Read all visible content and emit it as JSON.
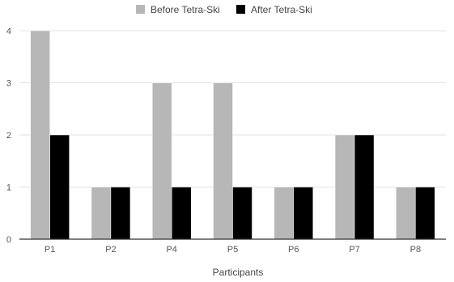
{
  "chart_data": {
    "type": "bar",
    "title": "",
    "xlabel": "Participants",
    "ylabel": "",
    "categories": [
      "P1",
      "P2",
      "P4",
      "P5",
      "P6",
      "P7",
      "P8"
    ],
    "series": [
      {
        "name": "Before Tetra-Ski",
        "color": "#b7b7b7",
        "values": [
          4,
          1,
          3,
          3,
          1,
          2,
          1
        ]
      },
      {
        "name": "After Tetra-Ski",
        "color": "#000000",
        "values": [
          2,
          1,
          1,
          1,
          1,
          2,
          1
        ]
      }
    ],
    "ylim": [
      0,
      4
    ],
    "yticks": [
      0,
      1,
      2,
      3,
      4
    ],
    "grid": true,
    "legend": "top-center",
    "colors": {
      "grid": "#e0e0e0",
      "axis": "#333333",
      "bar_stroke": "#ffffff"
    }
  }
}
